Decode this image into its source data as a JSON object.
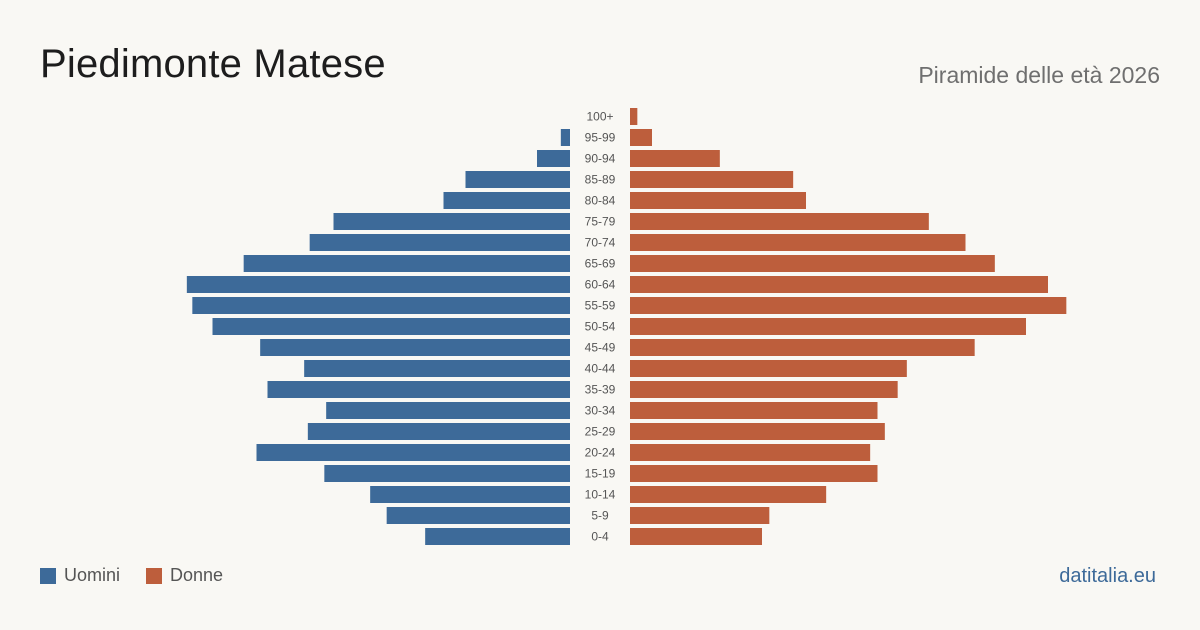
{
  "header": {
    "title": "Piedimonte Matese",
    "subtitle": "Piramide delle età 2026"
  },
  "legend": {
    "male_label": "Uomini",
    "female_label": "Donne"
  },
  "source": "datitalia.eu",
  "colors": {
    "male": "#3d6a99",
    "female": "#bd5e3c",
    "background": "#f9f8f4"
  },
  "chart_data": {
    "type": "bar",
    "orientation": "horizontal",
    "layout": "population-pyramid",
    "categories": [
      "100+",
      "95-99",
      "90-94",
      "85-89",
      "80-84",
      "75-79",
      "70-74",
      "65-69",
      "60-64",
      "55-59",
      "50-54",
      "45-49",
      "40-44",
      "35-39",
      "30-34",
      "25-29",
      "20-24",
      "15-19",
      "10-14",
      "5-9",
      "0-4"
    ],
    "series": [
      {
        "name": "Uomini",
        "side": "left",
        "values": [
          0,
          5,
          18,
          57,
          69,
          129,
          142,
          178,
          209,
          206,
          195,
          169,
          145,
          165,
          133,
          143,
          171,
          134,
          109,
          100,
          79
        ]
      },
      {
        "name": "Donne",
        "side": "right",
        "values": [
          4,
          12,
          49,
          89,
          96,
          163,
          183,
          199,
          228,
          238,
          216,
          188,
          151,
          146,
          135,
          139,
          131,
          135,
          107,
          76,
          72
        ]
      }
    ],
    "xlim": [
      0,
      240
    ],
    "grid": false,
    "legend_position": "bottom-left"
  }
}
